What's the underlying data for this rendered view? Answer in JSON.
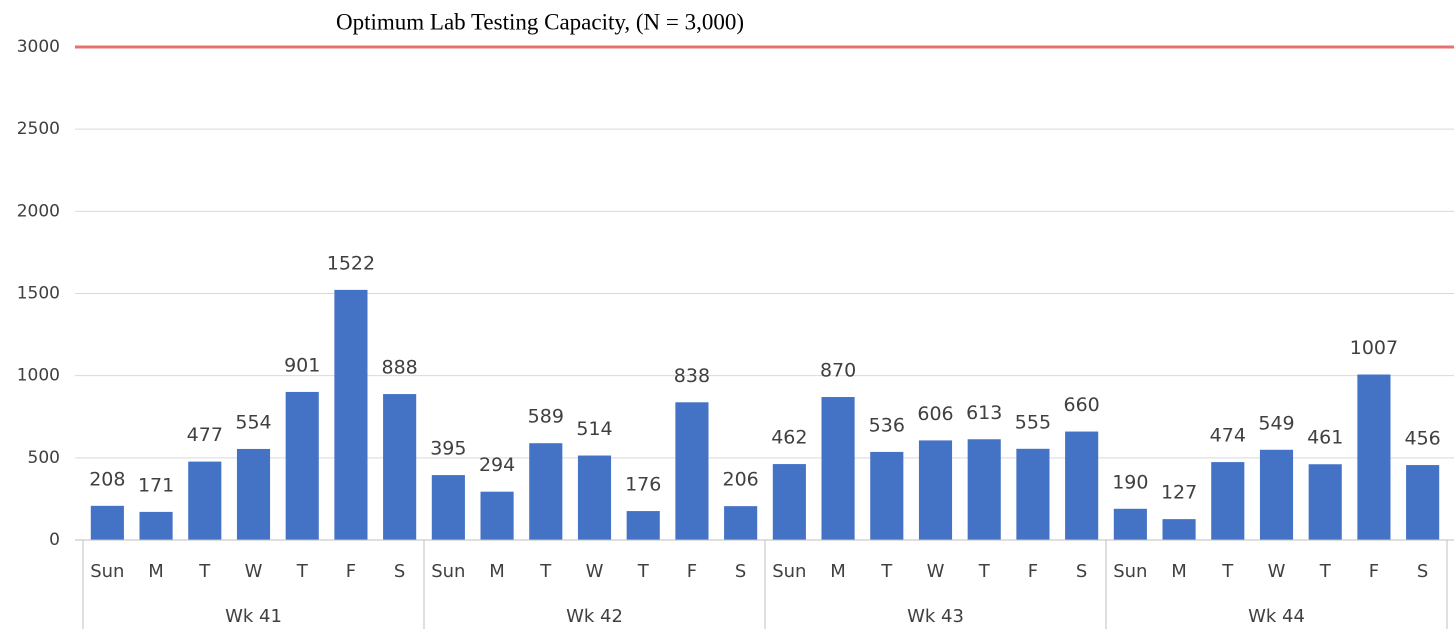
{
  "chart_data": {
    "type": "bar",
    "categories": [
      "Sun",
      "M",
      "T",
      "W",
      "T",
      "F",
      "S",
      "Sun",
      "M",
      "T",
      "W",
      "T",
      "F",
      "S",
      "Sun",
      "M",
      "T",
      "W",
      "T",
      "F",
      "S",
      "Sun",
      "M",
      "T",
      "W",
      "T",
      "F",
      "S"
    ],
    "groups": [
      "Wk 41",
      "Wk 42",
      "Wk 43",
      "Wk 44"
    ],
    "values": [
      208,
      171,
      477,
      554,
      901,
      1522,
      888,
      395,
      294,
      589,
      514,
      176,
      838,
      206,
      462,
      870,
      536,
      606,
      613,
      555,
      660,
      190,
      127,
      474,
      549,
      461,
      1007,
      456
    ],
    "color": "#4472c4",
    "ylim": [
      0,
      3000
    ],
    "yticks": [
      0,
      500,
      1000,
      1500,
      2000,
      2500,
      3000
    ],
    "grid": true,
    "reference_line": {
      "value": 3000,
      "label": "Optimum Lab Testing Capacity, (N = 3,000)",
      "color": "#e8706d"
    }
  }
}
